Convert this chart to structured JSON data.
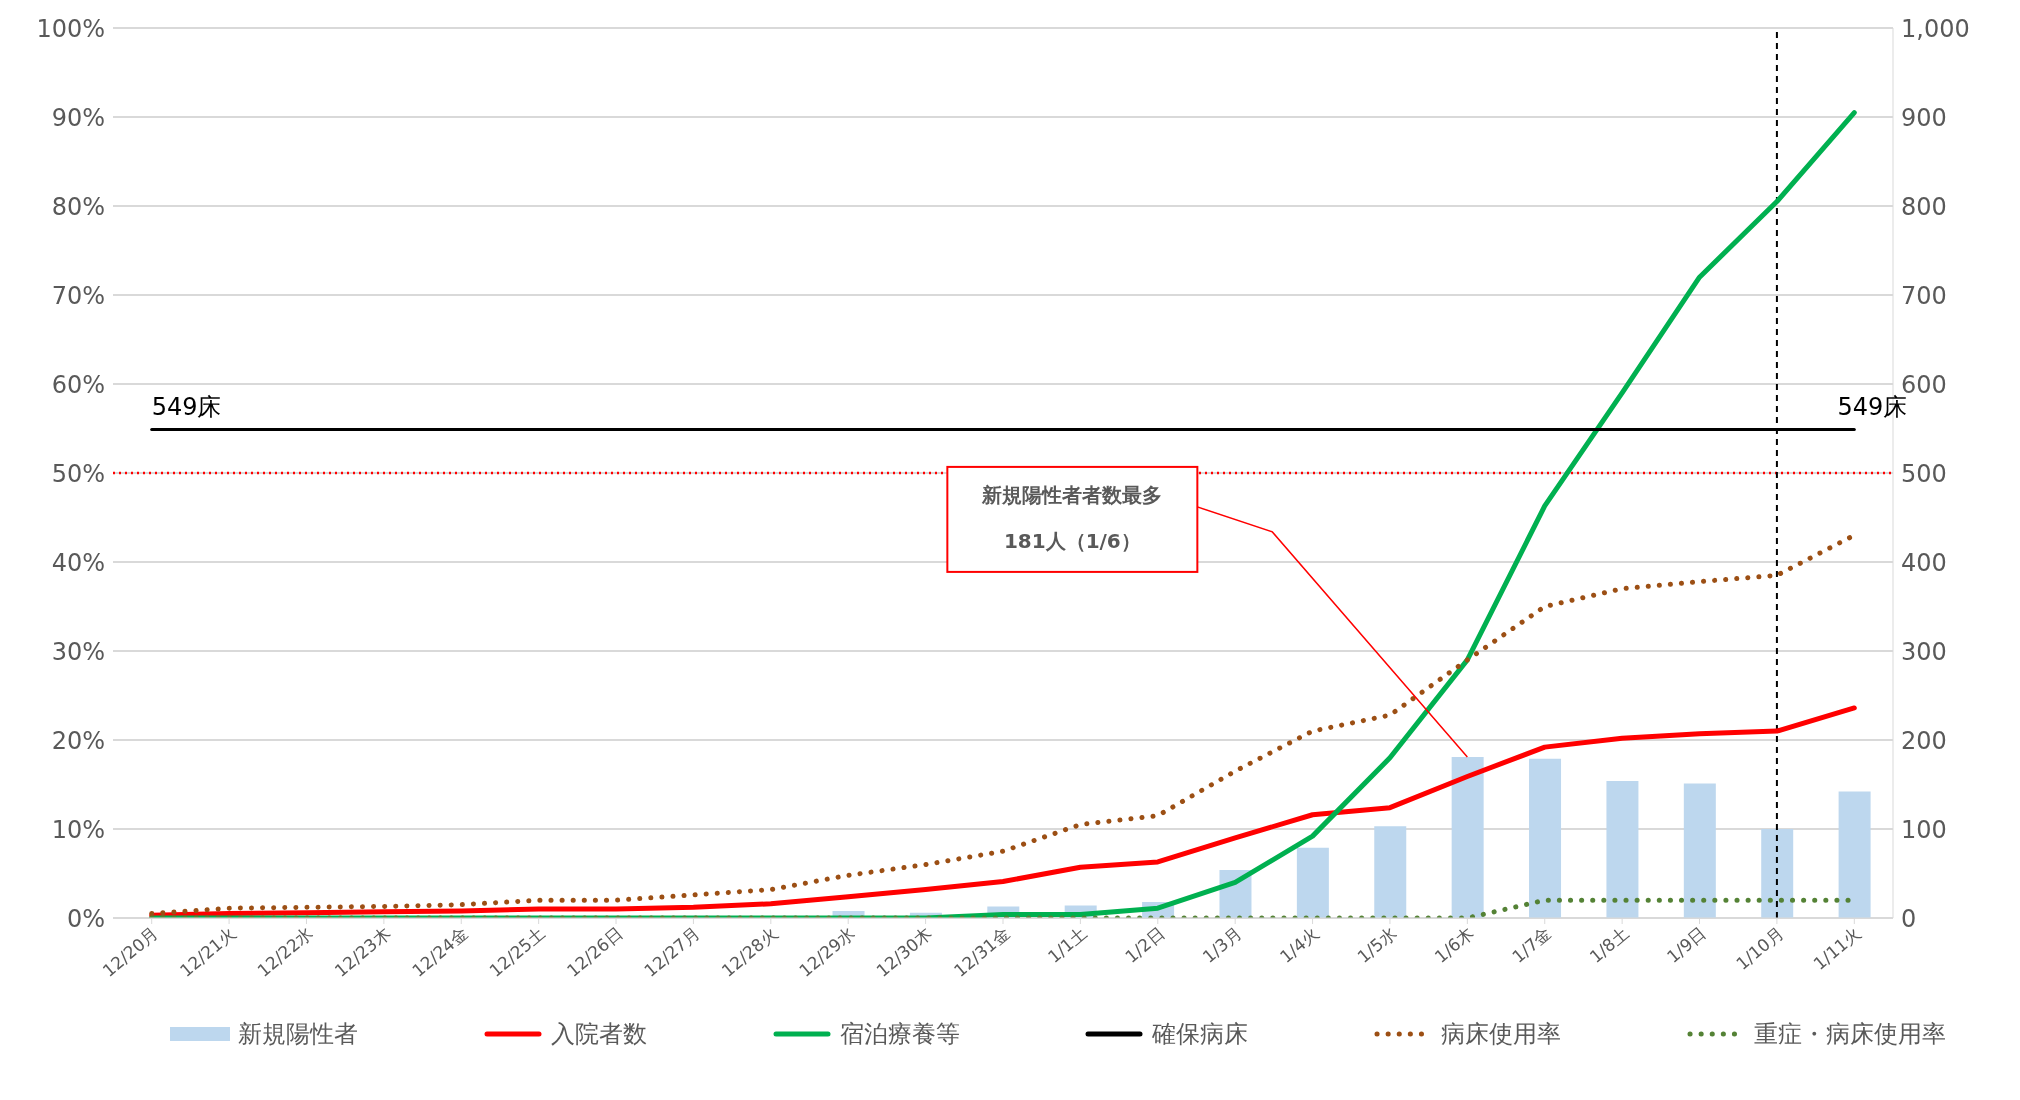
{
  "chart_data": {
    "type": "line",
    "categories": [
      "12/20月",
      "12/21火",
      "12/22水",
      "12/23木",
      "12/24金",
      "12/25土",
      "12/26日",
      "12/27月",
      "12/28火",
      "12/29水",
      "12/30木",
      "12/31金",
      "1/1土",
      "1/2日",
      "1/3月",
      "1/4火",
      "1/5水",
      "1/6木",
      "1/7金",
      "1/8土",
      "1/9日",
      "1/10月",
      "1/11火"
    ],
    "series": [
      {
        "name": "新規陽性者",
        "type": "bar",
        "axis": "y2",
        "color": "#bdd7ee",
        "values": [
          null,
          null,
          null,
          null,
          null,
          null,
          null,
          null,
          null,
          8,
          6,
          13,
          14,
          18,
          54,
          79,
          103,
          181,
          179,
          154,
          151,
          100,
          142
        ]
      },
      {
        "name": "入院者数",
        "axis": "y2",
        "color": "#ff0000",
        "line_style": "solid",
        "values": [
          3,
          5,
          6,
          7,
          8,
          10,
          10,
          12,
          16,
          24,
          32,
          41,
          57,
          63,
          90,
          116,
          124,
          159,
          192,
          202,
          207,
          210,
          236
        ]
      },
      {
        "name": "宿泊療養等",
        "axis": "y2",
        "color": "#00b050",
        "line_style": "solid",
        "values": [
          0,
          0,
          0,
          0,
          0,
          0,
          0,
          0,
          0,
          0,
          0,
          4,
          4,
          11,
          40,
          92,
          180,
          290,
          463,
          590,
          720,
          805,
          905
        ]
      },
      {
        "name": "確保病床",
        "axis": "y2",
        "color": "#000000",
        "line_style": "solid",
        "values": [
          549,
          549,
          549,
          549,
          549,
          549,
          549,
          549,
          549,
          549,
          549,
          549,
          549,
          549,
          549,
          549,
          549,
          549,
          549,
          549,
          549,
          549,
          549
        ]
      },
      {
        "name": "病床使用率",
        "axis": "y",
        "color": "#9c4f14",
        "line_style": "dotted",
        "values": [
          0.5,
          1.1,
          1.2,
          1.3,
          1.5,
          2,
          2,
          2.6,
          3.2,
          4.8,
          6,
          7.5,
          10.5,
          11.5,
          16.5,
          21,
          22.8,
          29,
          35,
          37,
          37.8,
          38.5,
          43
        ]
      },
      {
        "name": "重症・病床使用率",
        "axis": "y",
        "color": "#548235",
        "line_style": "dotted",
        "values": [
          0,
          0,
          0,
          0,
          0,
          0,
          0,
          0,
          0,
          0,
          0,
          0,
          0,
          0,
          0,
          0,
          0,
          0,
          2,
          2,
          2,
          2,
          2
        ]
      }
    ],
    "ylim": [
      0,
      100
    ],
    "yticks": [
      {
        "value": 0,
        "label": "0%"
      },
      {
        "value": 10,
        "label": "10%"
      },
      {
        "value": 20,
        "label": "20%"
      },
      {
        "value": 30,
        "label": "30%"
      },
      {
        "value": 40,
        "label": "40%"
      },
      {
        "value": 50,
        "label": "50%"
      },
      {
        "value": 60,
        "label": "60%"
      },
      {
        "value": 70,
        "label": "70%"
      },
      {
        "value": 80,
        "label": "80%"
      },
      {
        "value": 90,
        "label": "90%"
      },
      {
        "value": 100,
        "label": "100%"
      }
    ],
    "y2lim": [
      0,
      1000
    ],
    "y2ticks": [
      0,
      100,
      200,
      300,
      400,
      500,
      600,
      700,
      800,
      900,
      {
        "value": 1000,
        "label": "1,000"
      }
    ],
    "ref_lines": [
      {
        "axis": "y",
        "value": 50,
        "color": "#ff0000",
        "line_style": "dotted"
      },
      {
        "axis": "x",
        "value": "1/10月",
        "color": "#000000",
        "line_style": "dashed"
      }
    ],
    "annotations": [
      "549床",
      "549床",
      "新規陽性者者数最多\n181人（1/6）"
    ],
    "grid": "y",
    "legend": "bottom"
  }
}
